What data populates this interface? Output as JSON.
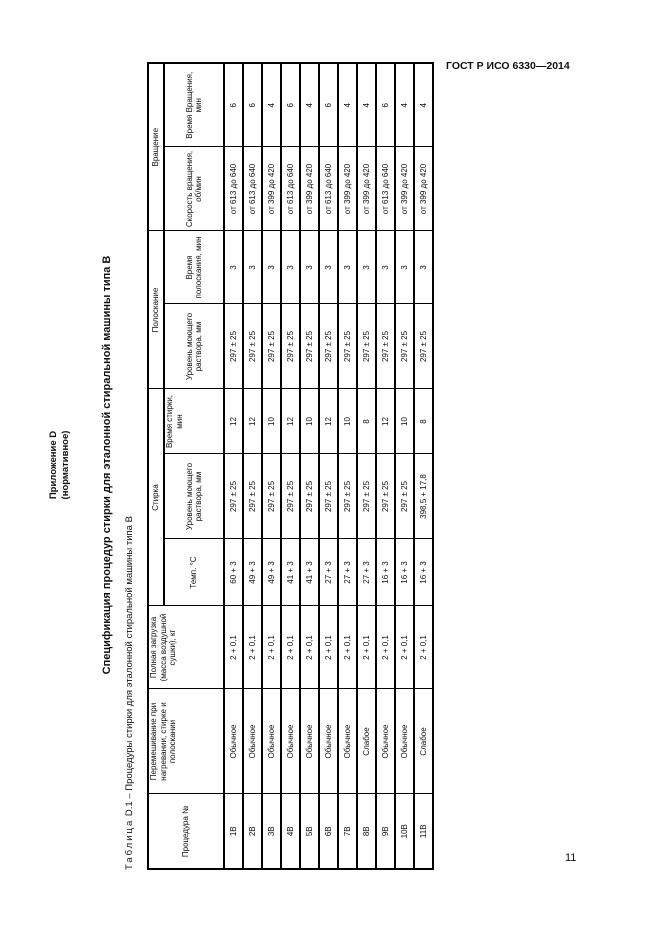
{
  "header": {
    "doc_code": "ГОСТ Р ИСО 6330—2014"
  },
  "appendix": {
    "line1": "Приложение D",
    "line2": "(нормативное)"
  },
  "title": "Спецификация процедур стирки для эталонной стиральной машины типа В",
  "caption": {
    "prefix": "Таблица",
    "rest": " D.1 – Процедуры стирки для эталонной стиральной машины типа В"
  },
  "table": {
    "groups": {
      "wash": "Стирка",
      "rinse": "Полоскание",
      "spin": "Вращение"
    },
    "columns": [
      "Процедура №",
      "Перемешивание при нагревании, стирке и полоскании",
      "Полная загрузка (масса воздушной сушки), кг",
      "Темп. °С",
      "Уровень моющего раствора, мм",
      "Время стирки, мин",
      "Уровень моющего раствора, мм",
      "Время полоскания, мин",
      "Скорость вращения, об/мин",
      "Время Вращения, мин"
    ],
    "rows": [
      [
        "1В",
        "Обычное",
        "2 + 0,1",
        "60 + 3",
        "297 ± 25",
        "12",
        "297 ± 25",
        "3",
        "от 613 до 640",
        "6"
      ],
      [
        "2В",
        "Обычное",
        "2 + 0,1",
        "49 + 3",
        "297 ± 25",
        "12",
        "297 ± 25",
        "3",
        "от 613 до 640",
        "6"
      ],
      [
        "3В",
        "Обычное",
        "2 + 0,1",
        "49 + 3",
        "297 ± 25",
        "10",
        "297 ± 25",
        "3",
        "от 399 до 420",
        "4"
      ],
      [
        "4В",
        "Обычное",
        "2 + 0,1",
        "41 + 3",
        "297 ± 25",
        "12",
        "297 ± 25",
        "3",
        "от 613 до 640",
        "6"
      ],
      [
        "5В",
        "Обычное",
        "2 + 0,1",
        "41 + 3",
        "297 ± 25",
        "10",
        "297 ± 25",
        "3",
        "от 399 до 420",
        "4"
      ],
      [
        "6В",
        "Обычное",
        "2 + 0,1",
        "27 + 3",
        "297 ± 25",
        "12",
        "297 ± 25",
        "3",
        "от 613 до 640",
        "6"
      ],
      [
        "7В",
        "Обычное",
        "2 + 0,1",
        "27 + 3",
        "297 ± 25",
        "10",
        "297 ± 25",
        "3",
        "от 399 до 420",
        "4"
      ],
      [
        "8В",
        "Слабое",
        "2 + 0,1",
        "27 + 3",
        "297 ± 25",
        "8",
        "297 ± 25",
        "3",
        "от 399 до 420",
        "4"
      ],
      [
        "9В",
        "Обычное",
        "2 + 0,1",
        "16 + 3",
        "297 ± 25",
        "12",
        "297 ± 25",
        "3",
        "от 613 до 640",
        "6"
      ],
      [
        "10В",
        "Обычное",
        "2 + 0,1",
        "16 + 3",
        "297 ± 25",
        "10",
        "297 ± 25",
        "3",
        "от 399 до 420",
        "4"
      ],
      [
        "11В",
        "Слабое",
        "2 + 0,1",
        "16 + 3",
        "398,5 + 17,8",
        "8",
        "297 ± 25",
        "3",
        "от 399 до 420",
        "4"
      ]
    ]
  },
  "page_number": "11"
}
